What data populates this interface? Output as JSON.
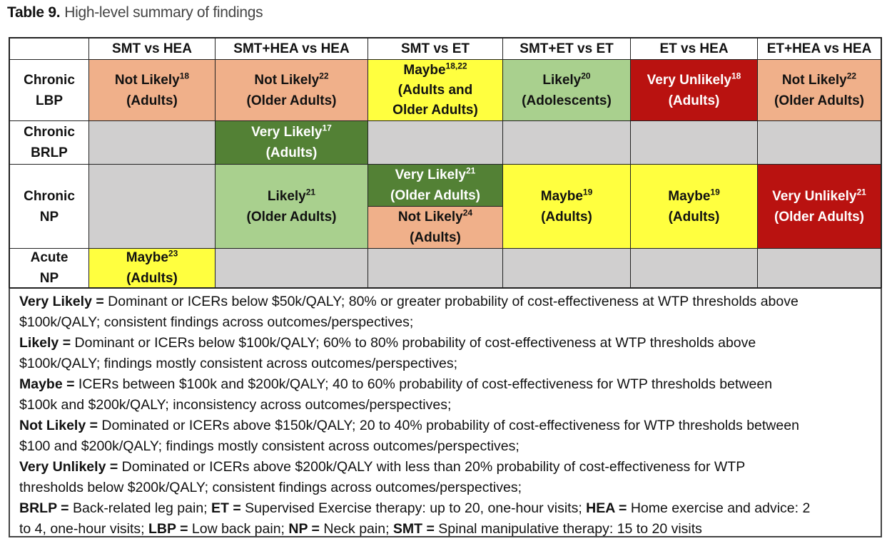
{
  "title": {
    "label": "Table 9.",
    "caption": "High-level summary of findings"
  },
  "columns": [
    "",
    "SMT vs HEA",
    "SMT+HEA vs HEA",
    "SMT vs ET",
    "SMT+ET vs ET",
    "ET vs HEA",
    "ET+HEA vs HEA"
  ],
  "rows": [
    {
      "label_line1": "Chronic",
      "label_line2": "LBP"
    },
    {
      "label_line1": "Chronic",
      "label_line2": "BRLP"
    },
    {
      "label_line1": "Chronic",
      "label_line2": "NP"
    },
    {
      "label_line1": "Acute",
      "label_line2": "NP"
    }
  ],
  "cells": {
    "lbp_smt_hea": {
      "rating": "Not Likely",
      "ref": "18",
      "population": "(Adults)"
    },
    "lbp_smthea_hea": {
      "rating": "Not Likely",
      "ref": "22",
      "population": "(Older Adults)"
    },
    "lbp_smt_et": {
      "rating": "Maybe",
      "ref": "18,22",
      "population_line1": "(Adults and",
      "population_line2": "Older Adults)"
    },
    "lbp_smtet_et": {
      "rating": "Likely",
      "ref": "20",
      "population": "(Adolescents)"
    },
    "lbp_et_hea": {
      "rating": "Very Unlikely",
      "ref": "18",
      "population": "(Adults)"
    },
    "lbp_ethea_hea": {
      "rating": "Not Likely",
      "ref": "22",
      "population": "(Older Adults)"
    },
    "brlp_smthea_hea": {
      "rating": "Very Likely",
      "ref": "17",
      "population": "(Adults)"
    },
    "np_smthea_hea": {
      "rating": "Likely",
      "ref": "21",
      "population": "(Older Adults)"
    },
    "np_smt_et_a": {
      "rating": "Very Likely",
      "ref": "21",
      "population": "(Older Adults)"
    },
    "np_smt_et_b": {
      "rating": "Not Likely",
      "ref": "24",
      "population": "(Adults)"
    },
    "np_smtet_et": {
      "rating": "Maybe",
      "ref": "19",
      "population": "(Adults)"
    },
    "np_et_hea": {
      "rating": "Maybe",
      "ref": "19",
      "population": "(Adults)"
    },
    "np_ethea_hea": {
      "rating": "Very Unlikely",
      "ref": "21",
      "population": "(Older Adults)"
    },
    "acute_smt_hea": {
      "rating": "Maybe",
      "ref": "23",
      "population": "(Adults)"
    }
  },
  "colors": {
    "very_likely": "#538135",
    "likely": "#a9d08e",
    "maybe": "#ffff3f",
    "not_likely": "#f0b08a",
    "very_unlikely": "#b91210",
    "not_studied": "#d0cfcf"
  },
  "notes": {
    "very_likely": {
      "term": "Very Likely =",
      "line1": " Dominant or ICERs below $50k/QALY; 80% or greater probability of cost-effectiveness at WTP thresholds above",
      "line2": "$100k/QALY; consistent findings across outcomes/perspectives;"
    },
    "likely": {
      "term": "Likely =",
      "line1": " Dominant or ICERs below $100k/QALY; 60% to 80% probability of cost-effectiveness at WTP thresholds above",
      "line2": "$100k/QALY; findings mostly consistent across outcomes/perspectives;"
    },
    "maybe": {
      "term": "Maybe =",
      "line1": " ICERs between $100k and $200k/QALY; 40 to 60% probability of cost-effectiveness for WTP thresholds between",
      "line2": "$100k and $200k/QALY; inconsistency across outcomes/perspectives;"
    },
    "not_likely": {
      "term": "Not Likely =",
      "line1": " Dominated or ICERs above $150k/QALY; 20 to 40% probability of cost-effectiveness for WTP thresholds between",
      "line2": "$100 and $200k/QALY; findings mostly consistent across outcomes/perspectives;"
    },
    "very_unlikely": {
      "term": "Very Unlikely =",
      "line1": " Dominated or ICERs above $200k/QALY with less than 20% probability of cost-effectiveness for WTP",
      "line2": "thresholds below $200k/QALY; consistent findings across outcomes/perspectives;"
    },
    "abbreviations": {
      "brlp_term": "BRLP =",
      "brlp_def": " Back-related leg pain; ",
      "et_term": "ET =",
      "et_def": " Supervised Exercise therapy: up to 20, one-hour visits; ",
      "hea_term": "HEA =",
      "hea_def": " Home exercise and advice: 2",
      "hea_def2": "to 4, one-hour visits; ",
      "lbp_term": "LBP =",
      "lbp_def": " Low back pain; ",
      "np_term": "NP =",
      "np_def": " Neck pain; ",
      "smt_term": "SMT =",
      "smt_def": " Spinal manipulative therapy: 15 to 20 visits"
    }
  }
}
